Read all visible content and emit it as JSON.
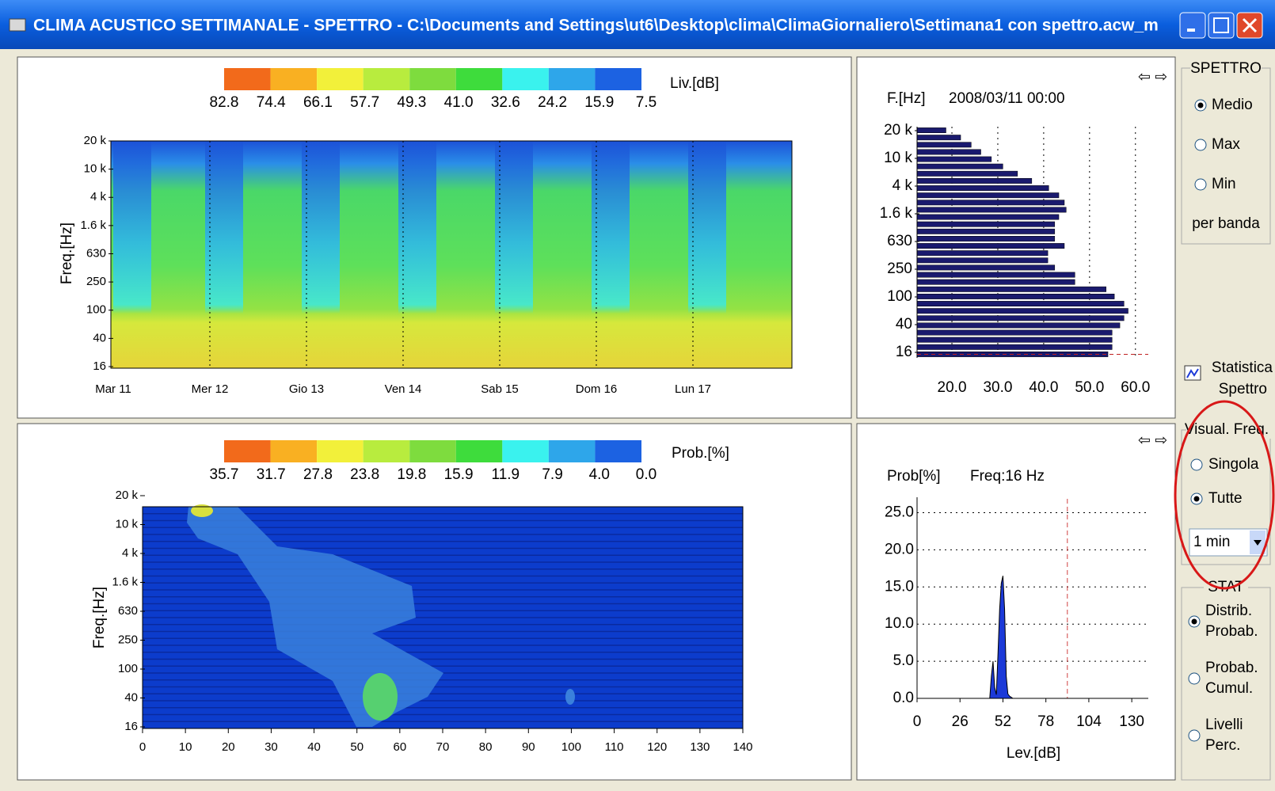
{
  "window": {
    "title": "CLIMA ACUSTICO SETTIMANALE - SPETTRO - C:\\Documents and Settings\\ut6\\Desktop\\clima\\ClimaGiornaliero\\Settimana1 con spettro.acw_m"
  },
  "level_panel": {
    "colorbar_labels": [
      "82.8",
      "74.4",
      "66.1",
      "57.7",
      "49.3",
      "41.0",
      "32.6",
      "24.2",
      "15.9",
      "7.5"
    ],
    "colorbar_colors": [
      "#f26a1b",
      "#f9b022",
      "#f2f03a",
      "#b8ec3e",
      "#7edc3e",
      "#3edc3c",
      "#3af2ee",
      "#2ea6ea",
      "#1c62e2"
    ],
    "unit": "Liv.[dB]",
    "y_label": "Freq.[Hz]",
    "freq_labels": [
      "20 k",
      "10 k",
      "4 k",
      "1.6 k",
      "630",
      "250",
      "100",
      "40",
      "16"
    ],
    "day_labels": [
      "Mar 11",
      "Mer 12",
      "Gio 13",
      "Ven 14",
      "Sab 15",
      "Dom 16",
      "Lun 17"
    ]
  },
  "spectrum_panel": {
    "freq_unit": "F.[Hz]",
    "timestamp": "2008/03/11 00:00",
    "freq_labels": [
      "20 k",
      "10 k",
      "4 k",
      "1.6 k",
      "630",
      "250",
      "100",
      "40",
      "16"
    ],
    "xlim": [
      12.4,
      62.8
    ],
    "xticks": [
      {
        "value": 20,
        "label": "20.0"
      },
      {
        "value": 30,
        "label": "30.0"
      },
      {
        "value": 40,
        "label": "40.0"
      },
      {
        "value": 50,
        "label": "50.0"
      },
      {
        "value": 60,
        "label": "60.0"
      }
    ],
    "color": "#1a1a6e",
    "values": [
      18.7,
      21.9,
      24.2,
      26.3,
      28.6,
      31.1,
      34.3,
      37.4,
      41.1,
      43.3,
      44.5,
      44.9,
      43.3,
      42.4,
      42.4,
      42.4,
      44.5,
      40.9,
      40.9,
      42.4,
      46.8,
      46.8,
      53.6,
      55.4,
      57.5,
      58.4,
      57.5,
      56.6,
      54.9,
      54.9,
      54.9,
      54.0
    ]
  },
  "probability_panel": {
    "colorbar_labels": [
      "35.7",
      "31.7",
      "27.8",
      "23.8",
      "19.8",
      "15.9",
      "11.9",
      "7.9",
      "4.0",
      "0.0"
    ],
    "unit": "Prob.[%]",
    "y_label": "Freq.[Hz]",
    "freq_labels": [
      "20 k",
      "10 k",
      "4 k",
      "1.6 k",
      "630",
      "250",
      "100",
      "40",
      "16"
    ],
    "xlim": [
      0,
      140
    ],
    "xticks": [
      0,
      10,
      20,
      30,
      40,
      50,
      60,
      70,
      80,
      90,
      100,
      110,
      120,
      130,
      140
    ]
  },
  "histogram_panel": {
    "y_label": "Prob[%]",
    "frequency": "Freq:16 Hz",
    "x_label": "Lev.[dB]",
    "ylim": [
      0,
      25.8
    ],
    "yticks": [
      {
        "value": 0,
        "label": "0.0"
      },
      {
        "value": 5,
        "label": "5.0"
      },
      {
        "value": 10,
        "label": "10.0"
      },
      {
        "value": 15,
        "label": "15.0"
      },
      {
        "value": 20,
        "label": "20.0"
      },
      {
        "value": 25,
        "label": "25.0"
      }
    ],
    "xlim": [
      0,
      140
    ],
    "xticks": [
      0,
      26,
      52,
      78,
      104,
      130
    ],
    "color": "#1c3ad8",
    "threshold": 91,
    "x": [
      44,
      45,
      46,
      47,
      48,
      49,
      50,
      51,
      52,
      53,
      54,
      55,
      56,
      58
    ],
    "values": [
      0,
      3,
      5,
      1.5,
      0.5,
      6,
      12,
      15.5,
      16.5,
      12,
      3,
      0.6,
      0.3,
      0
    ]
  },
  "sidebar": {
    "spettro": {
      "title": "SPETTRO",
      "options": [
        {
          "label": "Medio",
          "checked": true
        },
        {
          "label": "Max",
          "checked": false
        },
        {
          "label": "Min",
          "checked": false
        }
      ],
      "note": "per banda"
    },
    "statistica": [
      "Statistica",
      "Spettro"
    ],
    "visual": {
      "title": "Visual. Freq.",
      "options": [
        {
          "label": "Singola",
          "checked": false
        },
        {
          "label": "Tutte",
          "checked": true
        }
      ],
      "dropdown": "1 min"
    },
    "stat": {
      "title": "STAT",
      "options": [
        {
          "lines": [
            "Distrib.",
            "Probab."
          ],
          "checked": true
        },
        {
          "lines": [
            "Probab.",
            "Cumul."
          ],
          "checked": false
        },
        {
          "lines": [
            "Livelli",
            "Perc."
          ],
          "checked": false
        }
      ]
    }
  }
}
